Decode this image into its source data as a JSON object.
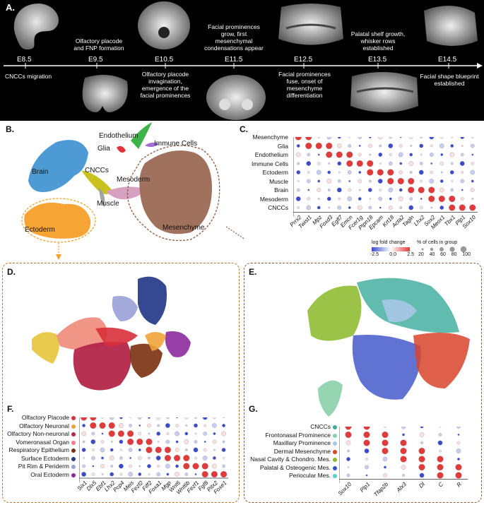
{
  "panels": {
    "a": "A.",
    "b": "B.",
    "c": "C.",
    "d": "D.",
    "e": "E.",
    "f": "F.",
    "g": "G."
  },
  "timeline": {
    "stages": [
      "E8.5",
      "E9.5",
      "E10.5",
      "E11.5",
      "E12.5",
      "E13.5",
      "E14.5"
    ],
    "captions": [
      "CNCCs migration",
      "Olfactory placode\nand FNP formation",
      "Olfactory placode\ninvagination,\nemergence of the\nfacial prominences",
      "Facial prominences\ngrow, first\nmesenchymal\ncondensations appear",
      "Facial prominences\nfuse, onset of\nmesenchyme\ndifferentiation",
      "Palatal shelf growth,\nwhisker rows\nestablished",
      "Facial shape blueprint\nestablished"
    ]
  },
  "umap_b": {
    "labels": [
      "Endothelium",
      "Immune Cells",
      "Glia",
      "Brain",
      "CNCCs",
      "Mesoderm",
      "Muscle",
      "Ectoderm",
      "Mesenchyme"
    ],
    "colors": {
      "brain": "#3a8fd0",
      "ectoderm": "#f5a02a",
      "mesenchyme": "#9b6a55",
      "endothelium": "#3fb24a",
      "immune": "#a56fd1",
      "glia": "#e0333a",
      "cnccs": "#c9c21e",
      "mesoderm": "#d8a0c0",
      "muscle": "#9fa4a8"
    }
  },
  "dotplot_c": {
    "rows": [
      "Mesenchyme",
      "Glia",
      "Endothelium",
      "Immune Cells",
      "Ectoderm",
      "Muscle",
      "Brain",
      "Mesoderm",
      "CNCCs"
    ],
    "genes": [
      "Prrx2",
      "Twist1",
      "Mpz",
      "Foxd3",
      "Egfl7",
      "Emcn",
      "Fcer1g",
      "Ptpn18",
      "Epcam",
      "Krt18",
      "Acta2",
      "Tagln",
      "Lhx2",
      "Sox2",
      "Meox1",
      "Tbx1",
      "Plp1",
      "Sox10"
    ],
    "legend_title_1": "log fold change",
    "legend_ticks_1": [
      "-2.5",
      "0.0",
      "2.5"
    ],
    "legend_title_2": "% of cells in group",
    "legend_ticks_2": [
      "20",
      "40",
      "60",
      "80",
      "100"
    ],
    "colors": {
      "high": "#e23a3a",
      "low": "#3a4bd0",
      "mid": "#ffffff"
    }
  },
  "dotplot_f": {
    "rows": [
      "Olfactory Placode",
      "Olfactory Neuronal",
      "Olfactory Non-neuronal",
      "Vomeronasal Organ",
      "Respiratory Epithelium",
      "Surface Ectoderm",
      "Pit Rim & Periderm",
      "Oral Ectoderm"
    ],
    "row_colors": [
      "#d8303a",
      "#f0a43a",
      "#b3264a",
      "#f07c8c",
      "#7a3010",
      "#2a3e8c",
      "#9aa0d8",
      "#8c2a9c"
    ],
    "genes": [
      "Six1",
      "Dlx5",
      "Ebf1",
      "Lhx2",
      "Pcp4",
      "Meis",
      "Fezf2",
      "Fiff2",
      "Foxa1",
      "Mgp",
      "Wnt6",
      "Wnt6b",
      "Fezf1",
      "Fgf8",
      "Pitx2",
      "Foxe1"
    ]
  },
  "dotplot_g": {
    "rows": [
      "CNCCs",
      "Frontonasal Prominence",
      "Maxillary Prominence",
      "Dermal Mesenchyme",
      "Nasal Cavity & Chondro. Mes.",
      "Palatal & Osteogenic Mes.",
      "Periocular Mes."
    ],
    "row_colors": [
      "#3aaa9a",
      "#8ad0a8",
      "#a8c8e8",
      "#d8442a",
      "#8ab828",
      "#3850c8",
      "#58d0c8"
    ],
    "genes": [
      "Sox10",
      "Plp1",
      "Tfap2b",
      "Alx3",
      "Dl",
      "C",
      "R"
    ]
  }
}
